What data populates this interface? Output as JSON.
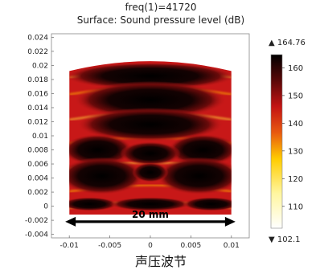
{
  "chart_data": {
    "type": "heatmap",
    "header_line": "freq(1)=41720",
    "title": "Surface: Sound pressure level (dB)",
    "x_ticks": [
      "-0.01",
      "-0.005",
      "0",
      "0.005",
      "0.01"
    ],
    "x_tick_values": [
      -0.01,
      -0.005,
      0,
      0.005,
      0.01
    ],
    "y_ticks": [
      "0.024",
      "0.022",
      "0.02",
      "0.018",
      "0.016",
      "0.014",
      "0.012",
      "0.01",
      "0.008",
      "0.006",
      "0.004",
      "0.002",
      "0",
      "-0.002",
      "-0.004"
    ],
    "y_tick_values": [
      0.024,
      0.022,
      0.02,
      0.018,
      0.016,
      0.014,
      0.012,
      0.01,
      0.008,
      0.006,
      0.004,
      0.002,
      0,
      -0.002,
      -0.004
    ],
    "xlim": [
      -0.0122,
      0.0122
    ],
    "ylim": [
      -0.0045,
      0.0245
    ],
    "colorbar": {
      "max_label": "▲ 164.76",
      "min_label": "▼ 102.1",
      "max": 164.76,
      "min": 102.1,
      "tick_labels": [
        "160",
        "150",
        "140",
        "130",
        "120",
        "110"
      ],
      "tick_values": [
        160,
        150,
        140,
        130,
        120,
        110
      ]
    },
    "annotation": "20 mm",
    "colors": {
      "low": "#ffffff",
      "mid": "#cc1a1a",
      "high": "#000000",
      "yellow": "#ffe020"
    }
  },
  "caption": "声压波节"
}
